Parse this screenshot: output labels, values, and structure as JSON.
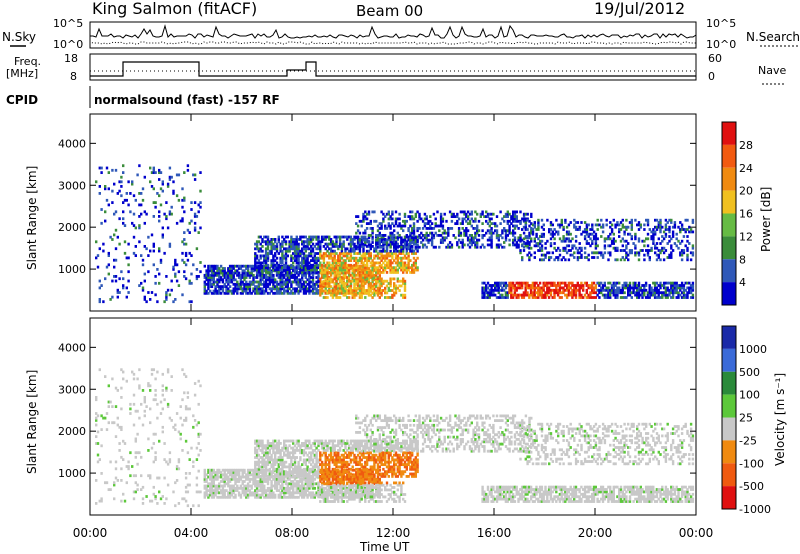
{
  "header": {
    "station": "King Salmon (fitACF)",
    "beam": "Beam 00",
    "date": "19/Jul/2012"
  },
  "strip_labels": {
    "nsky": "N.Sky",
    "nsky_top": "10^5",
    "nsky_bot": "10^0",
    "nsearch": "N.Search",
    "nsearch_top": "10^5",
    "nsearch_bot": "10^0",
    "freq_line1": "Freq.",
    "freq_line2": "[MHz]",
    "freq_top": "18",
    "freq_bot": "8",
    "nave": "Nave",
    "nave_top": "60",
    "nave_bot": "0",
    "cpid": "CPID",
    "cpid_text": "normalsound (fast) -157 RF"
  },
  "colors": {
    "power": [
      "#0000cc",
      "#2f58b8",
      "#3a8c3a",
      "#66bb44",
      "#f0c020",
      "#f08a10",
      "#f25a10",
      "#e01010"
    ],
    "velocity": [
      "#1a2aa8",
      "#3a6ad8",
      "#2a8a3a",
      "#5cc83a",
      "#c8c8c8",
      "#f08a10",
      "#f05a10",
      "#e01010"
    ]
  },
  "chart_data": [
    {
      "type": "heatmap",
      "name": "power",
      "ylabel": "Slant Range [km]",
      "yticks": [
        "1000",
        "2000",
        "3000",
        "4000"
      ],
      "ylim": [
        0,
        4700
      ],
      "xlim": [
        "00:00",
        "24:00"
      ],
      "colorbar_label": "Power [dB]",
      "colorbar_ticks": [
        "4",
        "8",
        "12",
        "16",
        "20",
        "24",
        "28"
      ]
    },
    {
      "type": "heatmap",
      "name": "velocity",
      "ylabel": "Slant Range [km]",
      "yticks": [
        "1000",
        "2000",
        "3000",
        "4000"
      ],
      "ylim": [
        0,
        4700
      ],
      "xlim": [
        "00:00",
        "24:00"
      ],
      "colorbar_label": "Velocity [m s⁻¹]",
      "colorbar_ticks": [
        "1000",
        "500",
        "100",
        "25",
        "-25",
        "-100",
        "-500",
        "-1000"
      ]
    }
  ],
  "xaxis": {
    "ticks": [
      "00:00",
      "04:00",
      "08:00",
      "12:00",
      "16:00",
      "20:00",
      "00:00"
    ],
    "label": "Time UT"
  }
}
